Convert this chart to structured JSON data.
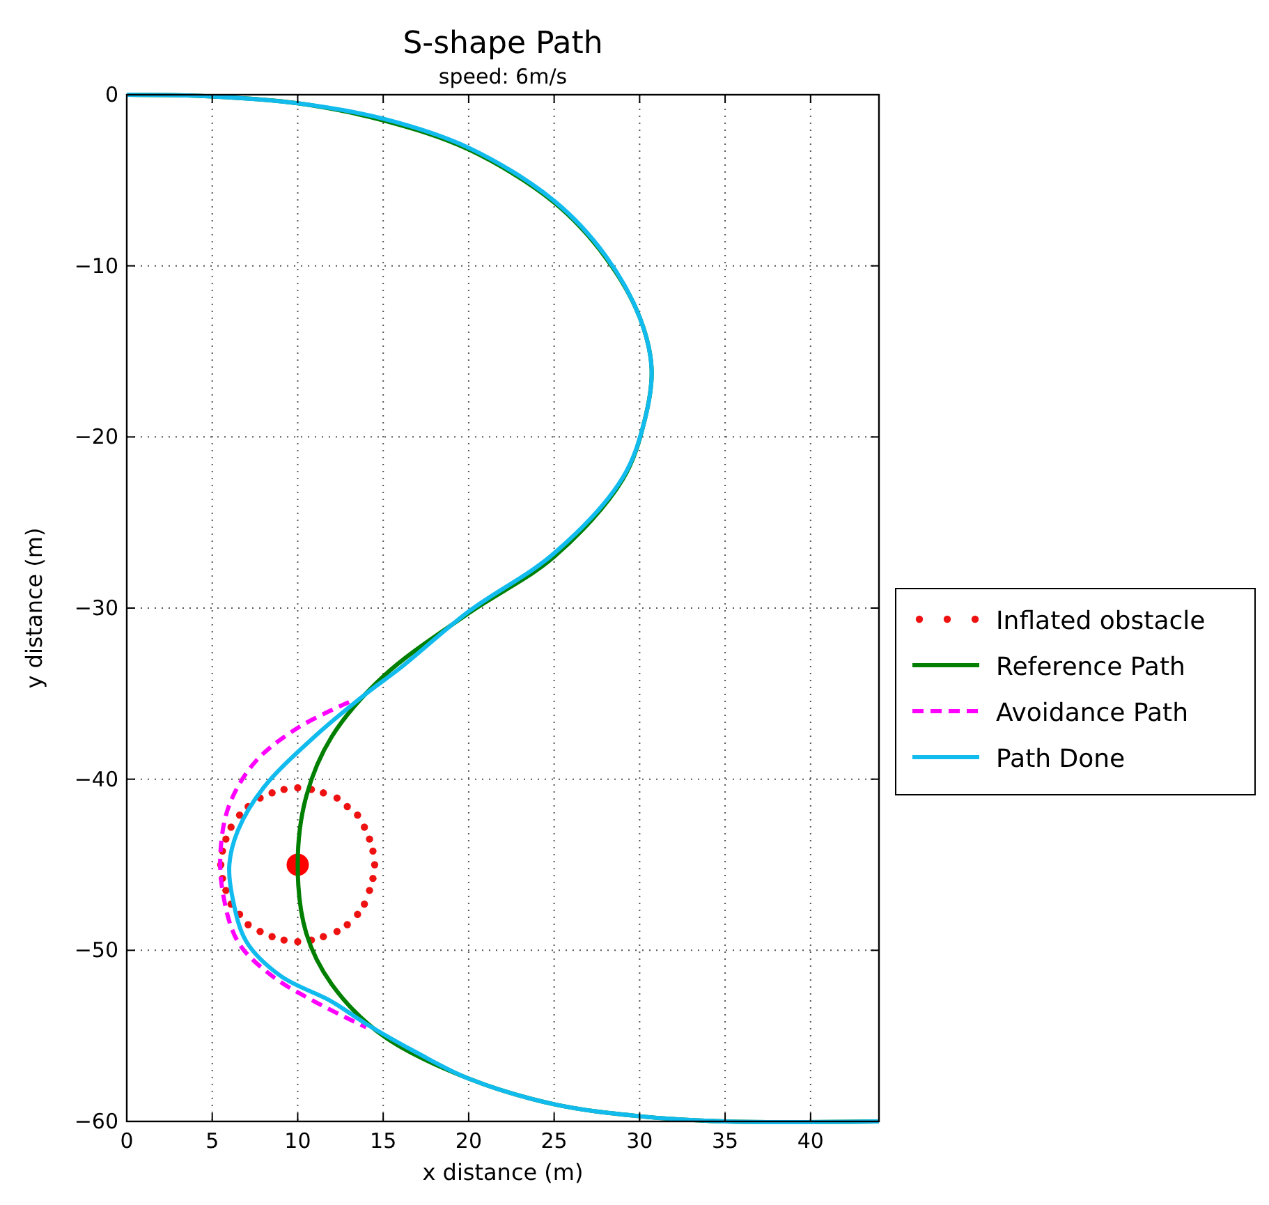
{
  "chart_data": {
    "type": "line",
    "title": "S-shape Path",
    "subtitle": "speed: 6m/s",
    "xlabel": "x distance (m)",
    "ylabel": "y distance (m)",
    "xlim": [
      0,
      44
    ],
    "xticks": [
      0,
      5,
      10,
      15,
      20,
      25,
      30,
      35,
      40
    ],
    "ylim": [
      -60,
      0
    ],
    "yticks": [
      0,
      -10,
      -20,
      -30,
      -40,
      -50,
      -60
    ],
    "grid": true,
    "legend": "right",
    "series": [
      {
        "name": "Inflated obstacle",
        "type": "scatter",
        "marker": "circle",
        "color": "#ee1111",
        "x": [
          14.5,
          14.4,
          14.2,
          13.9,
          13.5,
          12.9,
          12.3,
          11.5,
          10.8,
          10,
          9.2,
          8.5,
          7.8,
          7.1,
          6.6,
          6.1,
          5.8,
          5.6,
          5.5,
          5.6,
          5.8,
          6.1,
          6.6,
          7.1,
          7.8,
          8.5,
          9.2,
          10,
          10.8,
          11.5,
          12.3,
          12.9,
          13.5,
          13.9,
          14.2,
          14.4
        ],
        "values": [
          -45,
          -44.2,
          -43.5,
          -42.8,
          -42.1,
          -41.6,
          -41.1,
          -40.8,
          -40.6,
          -40.5,
          -40.6,
          -40.8,
          -41.1,
          -41.6,
          -42.1,
          -42.8,
          -43.5,
          -44.2,
          -45,
          -45.8,
          -46.5,
          -47.3,
          -47.9,
          -48.5,
          -48.9,
          -49.2,
          -49.4,
          -49.5,
          -49.4,
          -49.2,
          -48.9,
          -48.5,
          -47.9,
          -47.3,
          -46.5,
          -45.8
        ]
      },
      {
        "type": "scatter",
        "marker": "circle",
        "color": "#ff0000",
        "x": [
          10
        ],
        "values": [
          -45
        ]
      },
      {
        "name": "Reference Path",
        "line_style": "solid",
        "color": "#007f00",
        "x": [
          0,
          5,
          10,
          15,
          20,
          25,
          28,
          30,
          30.7,
          30.3,
          29,
          25,
          20,
          15,
          12,
          10.5,
          10,
          10.5,
          12,
          15,
          20,
          25,
          30,
          35,
          44
        ],
        "values": [
          0,
          -0.1,
          -0.5,
          -1.5,
          -3.2,
          -6.3,
          -9.5,
          -13,
          -16,
          -19,
          -22.5,
          -27,
          -30.3,
          -34,
          -37.5,
          -41,
          -45,
          -49,
          -52,
          -55,
          -57.5,
          -59,
          -59.7,
          -60,
          -60
        ]
      },
      {
        "name": "Avoidance Path",
        "line_style": "dashed",
        "color": "#ff00ff",
        "x": [
          13,
          10,
          7.5,
          6,
          5.5,
          5.6,
          6.5,
          8.5,
          11,
          14
        ],
        "values": [
          -35.5,
          -37,
          -39,
          -41.5,
          -44,
          -46.5,
          -49.5,
          -51.5,
          -53,
          -54.5
        ]
      },
      {
        "name": "Path Done",
        "line_style": "solid",
        "color": "#11bbee",
        "x": [
          0,
          5,
          10,
          15,
          20,
          25,
          28,
          30,
          30.7,
          30.3,
          29,
          25,
          20,
          16,
          14,
          11,
          8,
          6.5,
          6,
          6.2,
          7,
          9,
          12,
          14,
          17,
          20,
          25,
          30,
          35,
          44
        ],
        "values": [
          0,
          -0.1,
          -0.5,
          -1.4,
          -3.1,
          -6.2,
          -9.4,
          -13,
          -16,
          -19,
          -22.4,
          -26.8,
          -30.2,
          -33.5,
          -35,
          -37.5,
          -40.5,
          -43,
          -45,
          -47,
          -49.5,
          -51.5,
          -53,
          -54.3,
          -56,
          -57.5,
          -59,
          -59.7,
          -60,
          -60
        ]
      }
    ]
  }
}
